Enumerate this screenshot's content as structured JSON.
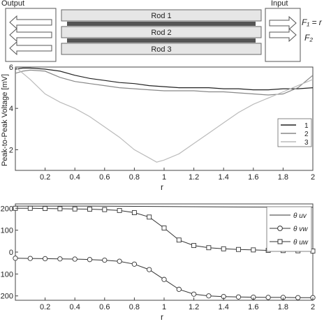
{
  "diagram": {
    "output_label": "Output",
    "input_label": "Input",
    "rods": [
      "Rod 1",
      "Rod 2",
      "Rod 3"
    ],
    "force1_label": "F₁ = r",
    "force2_label": "F₂"
  },
  "chart_data": [
    {
      "type": "line",
      "title": "",
      "xlabel": "r",
      "ylabel": "Peak-to-Peak Voltage [mV]",
      "xlim": [
        0,
        2
      ],
      "ylim": [
        1,
        6
      ],
      "xticks": [
        "0.2",
        "0.4",
        "0.6",
        "0.8",
        "1",
        "1.2",
        "1.4",
        "1.6",
        "1.8",
        "2"
      ],
      "yticks": [
        "2",
        "4",
        "6"
      ],
      "legend_position": "right",
      "grid": false,
      "series": [
        {
          "name": "1",
          "color": "#222222",
          "points": [
            [
              0,
              5.9
            ],
            [
              0.05,
              5.95
            ],
            [
              0.1,
              5.95
            ],
            [
              0.2,
              5.9
            ],
            [
              0.3,
              5.8
            ],
            [
              0.4,
              5.6
            ],
            [
              0.5,
              5.45
            ],
            [
              0.6,
              5.35
            ],
            [
              0.7,
              5.25
            ],
            [
              0.8,
              5.2
            ],
            [
              0.9,
              5.1
            ],
            [
              1.0,
              5.05
            ],
            [
              1.1,
              5.0
            ],
            [
              1.2,
              5.0
            ],
            [
              1.3,
              5.0
            ],
            [
              1.4,
              4.95
            ],
            [
              1.5,
              4.95
            ],
            [
              1.6,
              4.9
            ],
            [
              1.7,
              4.9
            ],
            [
              1.8,
              4.95
            ],
            [
              1.9,
              4.95
            ],
            [
              2.0,
              5.0
            ]
          ]
        },
        {
          "name": "2",
          "color": "#888888",
          "points": [
            [
              0,
              5.7
            ],
            [
              0.05,
              5.8
            ],
            [
              0.1,
              5.85
            ],
            [
              0.2,
              5.8
            ],
            [
              0.3,
              5.5
            ],
            [
              0.4,
              5.3
            ],
            [
              0.5,
              5.2
            ],
            [
              0.6,
              5.1
            ],
            [
              0.7,
              5.0
            ],
            [
              0.8,
              4.95
            ],
            [
              0.9,
              4.9
            ],
            [
              1.0,
              4.85
            ],
            [
              1.1,
              4.85
            ],
            [
              1.2,
              4.85
            ],
            [
              1.3,
              4.8
            ],
            [
              1.4,
              4.8
            ],
            [
              1.5,
              4.75
            ],
            [
              1.6,
              4.7
            ],
            [
              1.7,
              4.65
            ],
            [
              1.8,
              4.7
            ],
            [
              1.9,
              5.0
            ],
            [
              2.0,
              5.6
            ]
          ]
        },
        {
          "name": "3",
          "color": "#bbbbbb",
          "points": [
            [
              0,
              6.0
            ],
            [
              0.1,
              5.4
            ],
            [
              0.2,
              4.7
            ],
            [
              0.3,
              4.3
            ],
            [
              0.4,
              4.0
            ],
            [
              0.5,
              3.6
            ],
            [
              0.6,
              3.1
            ],
            [
              0.7,
              2.6
            ],
            [
              0.8,
              2.0
            ],
            [
              0.9,
              1.6
            ],
            [
              0.95,
              1.4
            ],
            [
              1.0,
              1.5
            ],
            [
              1.1,
              1.8
            ],
            [
              1.2,
              2.3
            ],
            [
              1.3,
              2.8
            ],
            [
              1.4,
              3.3
            ],
            [
              1.5,
              3.8
            ],
            [
              1.6,
              4.2
            ],
            [
              1.7,
              4.5
            ],
            [
              1.8,
              4.8
            ],
            [
              1.9,
              5.1
            ],
            [
              2.0,
              5.4
            ]
          ]
        }
      ]
    },
    {
      "type": "line",
      "title": "",
      "xlabel": "r",
      "ylabel": "",
      "xlim": [
        0,
        2
      ],
      "ylim": [
        -220,
        220
      ],
      "xticks": [
        "0.2",
        "0.4",
        "0.6",
        "0.8",
        "1",
        "1.2",
        "1.4",
        "1.6",
        "1.8",
        "2"
      ],
      "yticks": [
        "200",
        "100",
        "0",
        "100",
        "200"
      ],
      "legend_position": "top-right",
      "grid": false,
      "series": [
        {
          "name": "θ uv",
          "marker": "none",
          "points": [
            [
              0,
              210
            ],
            [
              0.5,
              210
            ],
            [
              1.0,
              208
            ],
            [
              1.5,
              206
            ],
            [
              2.0,
              205
            ]
          ]
        },
        {
          "name": "θ vw",
          "marker": "circle",
          "points": [
            [
              0,
              -28
            ],
            [
              0.1,
              -29
            ],
            [
              0.2,
              -30
            ],
            [
              0.3,
              -31
            ],
            [
              0.4,
              -32
            ],
            [
              0.5,
              -34
            ],
            [
              0.6,
              -37
            ],
            [
              0.7,
              -42
            ],
            [
              0.8,
              -55
            ],
            [
              0.9,
              -80
            ],
            [
              1.0,
              -125
            ],
            [
              1.1,
              -170
            ],
            [
              1.2,
              -192
            ],
            [
              1.3,
              -200
            ],
            [
              1.4,
              -203
            ],
            [
              1.5,
              -205
            ],
            [
              1.6,
              -206
            ],
            [
              1.7,
              -207
            ],
            [
              1.8,
              -207
            ],
            [
              1.9,
              -208
            ],
            [
              2.0,
              -208
            ]
          ]
        },
        {
          "name": "θ uw",
          "marker": "square",
          "points": [
            [
              0,
              200
            ],
            [
              0.1,
              200
            ],
            [
              0.2,
              199
            ],
            [
              0.3,
              198
            ],
            [
              0.4,
              197
            ],
            [
              0.5,
              196
            ],
            [
              0.6,
              194
            ],
            [
              0.7,
              190
            ],
            [
              0.8,
              180
            ],
            [
              0.9,
              160
            ],
            [
              1.0,
              110
            ],
            [
              1.1,
              55
            ],
            [
              1.2,
              30
            ],
            [
              1.3,
              20
            ],
            [
              1.4,
              15
            ],
            [
              1.5,
              12
            ],
            [
              1.6,
              10
            ],
            [
              1.7,
              8
            ],
            [
              1.8,
              7
            ],
            [
              1.9,
              6
            ],
            [
              2.0,
              5
            ]
          ]
        }
      ]
    }
  ]
}
